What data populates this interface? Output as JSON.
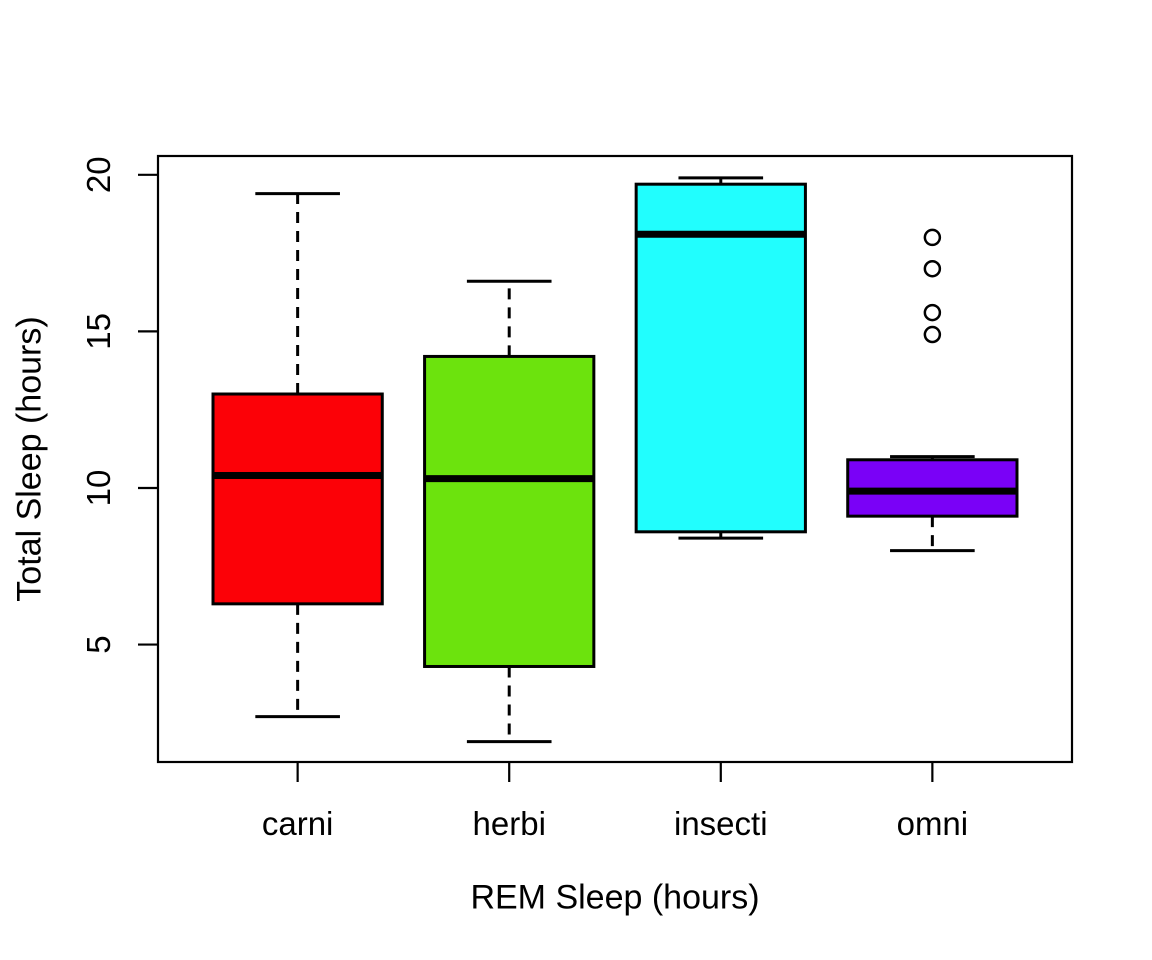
{
  "chart_data": {
    "type": "boxplot",
    "title": "",
    "xlabel": "REM Sleep (hours)",
    "ylabel": "Total Sleep (hours)",
    "categories": [
      "carni",
      "herbi",
      "insecti",
      "omni"
    ],
    "series": [
      {
        "name": "carni",
        "color": "#FC0107",
        "whisker_low": 2.7,
        "q1": 6.3,
        "median": 10.4,
        "q3": 13.0,
        "whisker_high": 19.4,
        "outliers": []
      },
      {
        "name": "herbi",
        "color": "#6CE30D",
        "whisker_low": 1.9,
        "q1": 4.3,
        "median": 10.3,
        "q3": 14.2,
        "whisker_high": 16.6,
        "outliers": []
      },
      {
        "name": "insecti",
        "color": "#21FEFE",
        "whisker_low": 8.4,
        "q1": 8.6,
        "median": 18.1,
        "q3": 19.7,
        "whisker_high": 19.9,
        "outliers": []
      },
      {
        "name": "omni",
        "color": "#7A01F7",
        "whisker_low": 8.0,
        "q1": 9.1,
        "median": 9.9,
        "q3": 10.9,
        "whisker_high": 11.0,
        "outliers": [
          14.9,
          15.6,
          17.0,
          18.0
        ]
      }
    ],
    "yticks": [
      5,
      10,
      15,
      20
    ],
    "ylim": [
      1.25,
      20.6
    ],
    "xlim": [
      0.34,
      4.66
    ],
    "grid": false,
    "legend": false,
    "box_width": 0.8,
    "cap_width": 0.4,
    "line_color": "#000000",
    "background": "#FFFFFF"
  }
}
